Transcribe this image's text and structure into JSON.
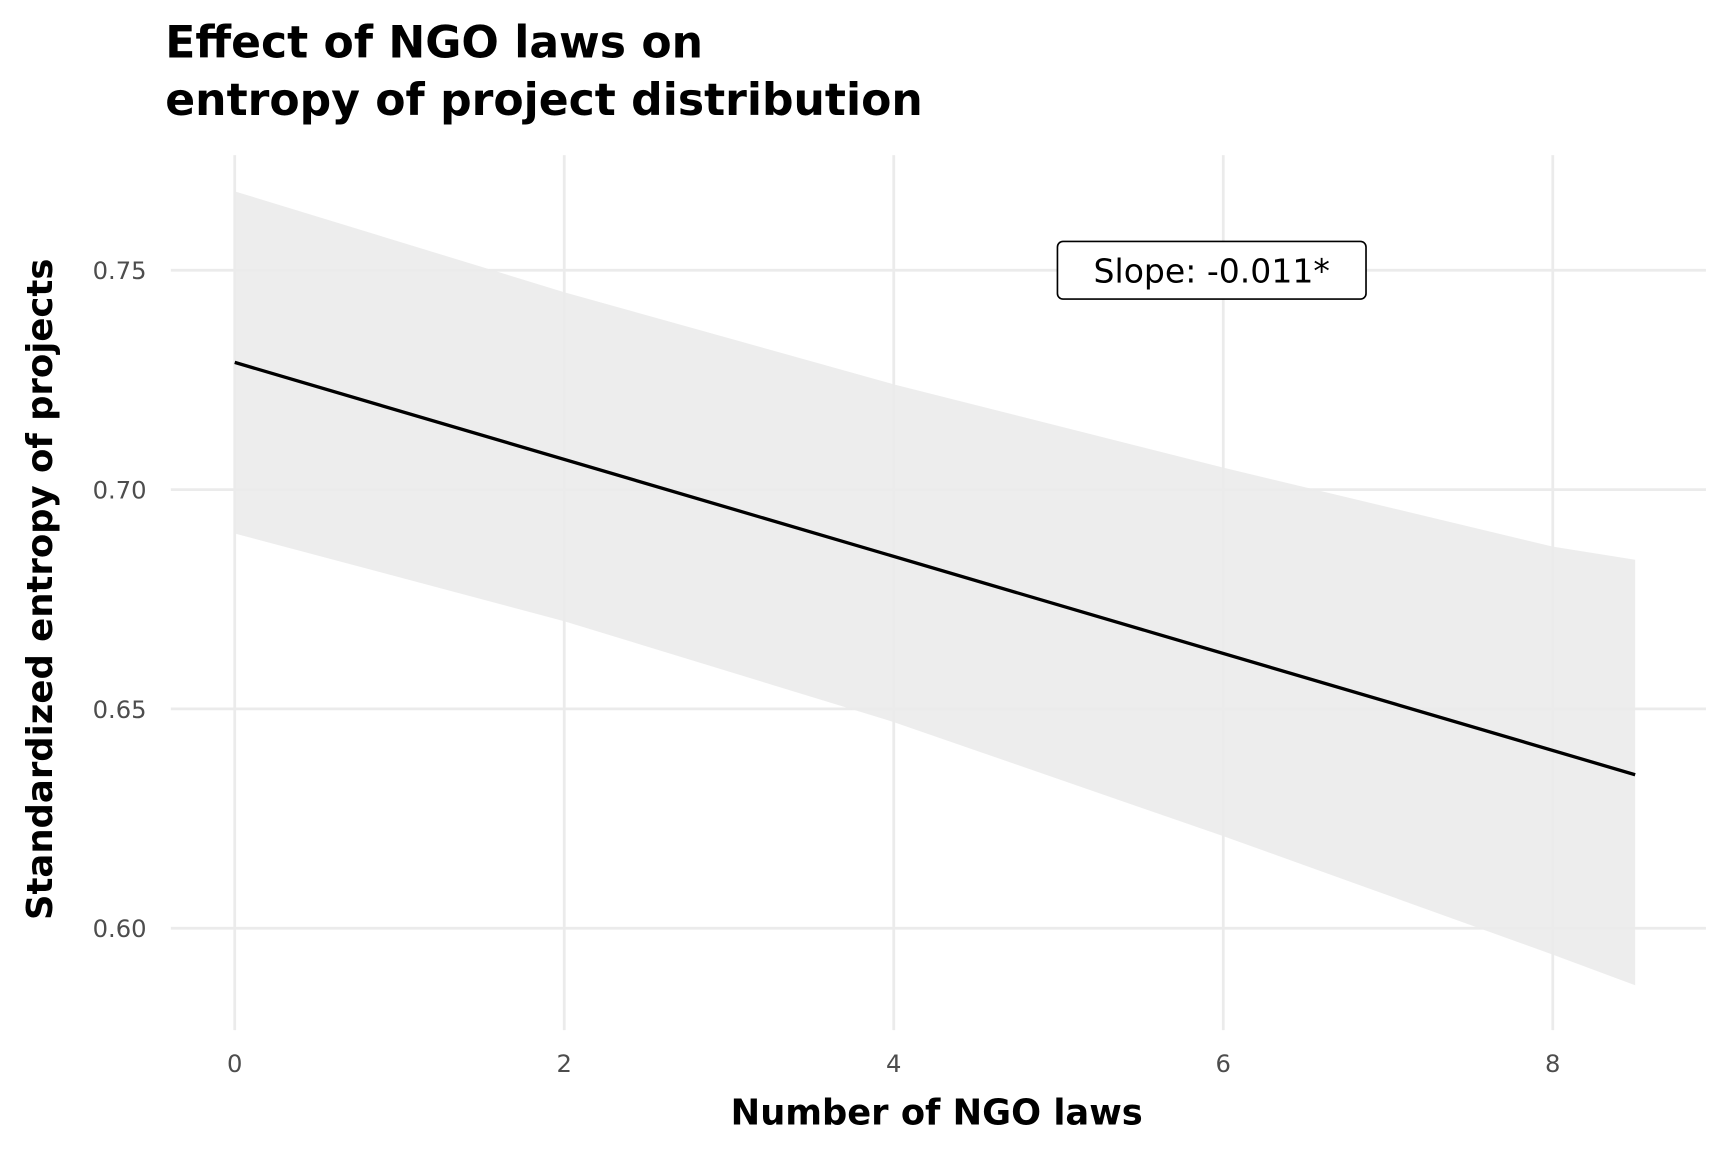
{
  "chart_data": {
    "type": "line",
    "title": [
      "Effect of NGO laws on",
      "entropy of project distribution"
    ],
    "xlabel": "Number of NGO laws",
    "ylabel": "Standardized entropy of projects",
    "xlim": [
      -0.4,
      8.95
    ],
    "ylim": [
      0.577,
      0.79
    ],
    "xticks": [
      0,
      2,
      4,
      6,
      8
    ],
    "xtick_labels": [
      "0",
      "2",
      "4",
      "6",
      "8"
    ],
    "yticks": [
      0.6,
      0.65,
      0.7,
      0.75
    ],
    "ytick_labels": [
      "0.60",
      "0.65",
      "0.70",
      "0.75"
    ],
    "grid": true,
    "series": [
      {
        "name": "fit",
        "x": [
          0,
          8.5
        ],
        "y": [
          0.729,
          0.635
        ]
      }
    ],
    "ribbon": {
      "x": [
        0,
        2,
        4,
        6,
        8,
        8.5
      ],
      "lower": [
        0.69,
        0.67,
        0.647,
        0.621,
        0.594,
        0.587
      ],
      "upper": [
        0.768,
        0.745,
        0.724,
        0.705,
        0.687,
        0.684
      ]
    },
    "annotation": {
      "text": "Slope: -0.011*",
      "x": 5.93,
      "y": 0.75
    },
    "colors": {
      "line": "#000000",
      "ribbon": "#ebebeb",
      "grid": "#ebebeb"
    }
  }
}
